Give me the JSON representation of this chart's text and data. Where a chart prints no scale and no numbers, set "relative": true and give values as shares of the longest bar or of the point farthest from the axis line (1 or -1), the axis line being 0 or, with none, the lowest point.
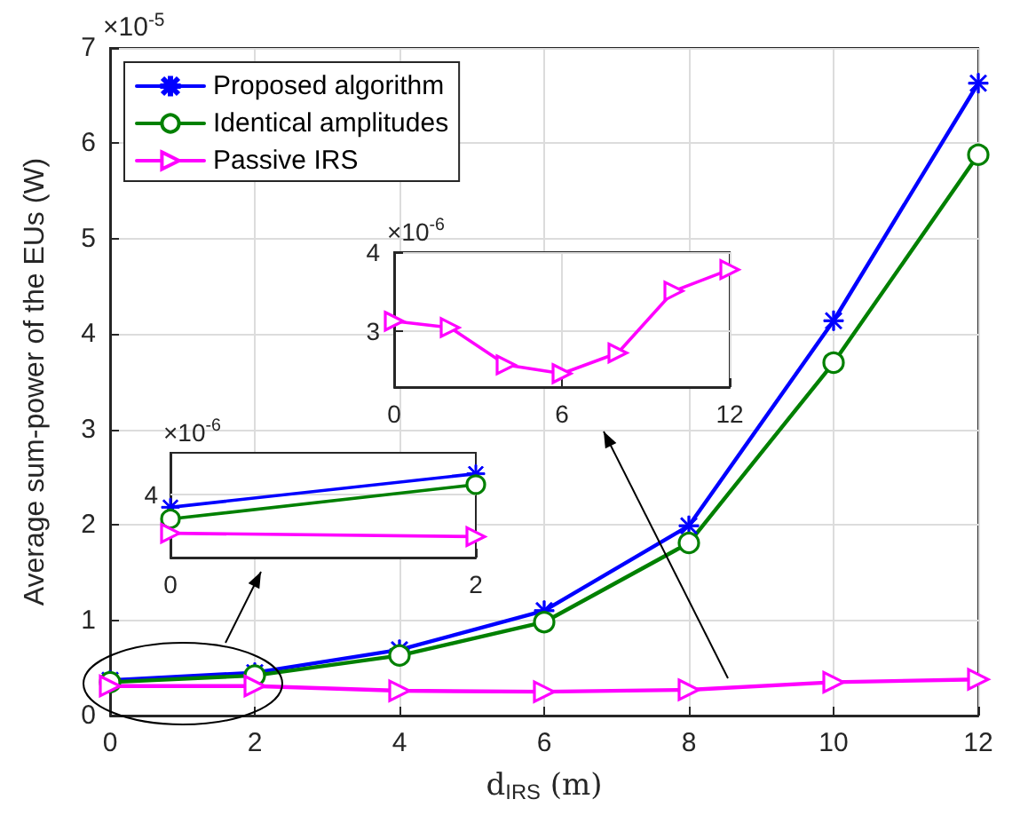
{
  "chart_data": [
    {
      "type": "line",
      "xlabel": "d$_{IRS}$ (m)",
      "ylabel": "Average sum-power of the EUs (W)",
      "annotations": [
        "×10$^{-5}$"
      ],
      "x": [
        0,
        2,
        4,
        6,
        8,
        10,
        12
      ],
      "xlim": [
        0,
        12
      ],
      "xticks": [
        0,
        2,
        4,
        6,
        8,
        10,
        12
      ],
      "ylim": [
        0,
        7
      ],
      "yticks": [
        0,
        1,
        2,
        3,
        4,
        5,
        6,
        7
      ],
      "grid": true,
      "legend": "top left",
      "series": [
        {
          "name": "Proposed algorithm",
          "color": "#0000ff",
          "marker": "star",
          "values": [
            0.37,
            0.45,
            0.69,
            1.1,
            1.99,
            4.14,
            6.63
          ]
        },
        {
          "name": "Identical amplitudes",
          "color": "#008000",
          "marker": "circle",
          "values": [
            0.35,
            0.42,
            0.63,
            0.98,
            1.81,
            3.7,
            5.88
          ]
        },
        {
          "name": "Passive IRS",
          "color": "#ff00ff",
          "marker": "triangle",
          "values": [
            0.31,
            0.31,
            0.26,
            0.25,
            0.27,
            0.35,
            0.38
          ]
        }
      ]
    },
    {
      "type": "line",
      "relative": true,
      "annotations": [
        "×10$^{-6}$",
        {
          "text": "4",
          "x": 0,
          "y": 0.75
        }
      ],
      "ref_lines": [
        {
          "axis": "y",
          "value": 0.75,
          "color": "#dcdcdc"
        }
      ],
      "x": [
        0,
        2
      ],
      "xlim": [
        0,
        2
      ],
      "xticks": [
        0,
        2
      ],
      "series": [
        {
          "color": "#0000ff",
          "marker": "star",
          "values": [
            0.6,
            1
          ]
        },
        {
          "color": "#008000",
          "marker": "circle",
          "values": [
            0.46,
            0.87
          ]
        },
        {
          "color": "#ff00ff",
          "marker": "triangle",
          "values": [
            0.29,
            0.25
          ]
        }
      ]
    },
    {
      "type": "line",
      "annotations": [
        "×10$^{-6}$"
      ],
      "x": [
        0,
        2,
        4,
        6,
        8,
        10,
        12
      ],
      "xlim": [
        0,
        12
      ],
      "xticks": [
        0,
        6,
        12
      ],
      "ylim": [
        2.3,
        4
      ],
      "yticks": [
        3,
        4
      ],
      "grid": true,
      "series": [
        {
          "color": "#ff00ff",
          "marker": "triangle",
          "values": [
            3.13,
            3.05,
            2.58,
            2.47,
            2.73,
            3.51,
            3.78
          ]
        }
      ]
    }
  ]
}
